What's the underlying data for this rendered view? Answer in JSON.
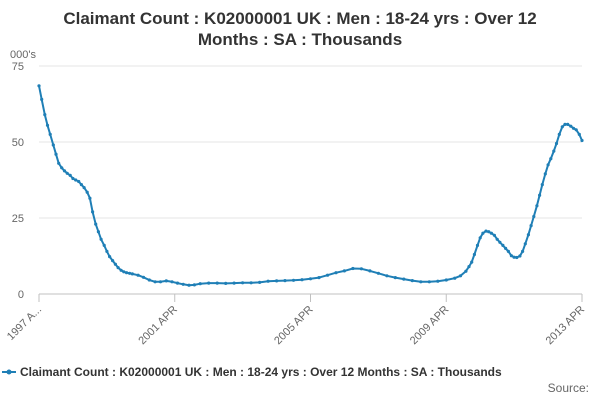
{
  "chart_data": {
    "type": "line",
    "title_lines": [
      "Claimant Count : K02000001 UK : Men : 18-24 yrs : Over 12",
      "Months : SA : Thousands"
    ],
    "ylabel": "000's",
    "ylim": [
      0,
      75
    ],
    "y_ticks": [
      "0",
      "25",
      "50",
      "75"
    ],
    "x_tick_labels": [
      "1997 A...",
      "2001 APR",
      "2005 APR",
      "2009 APR",
      "2013 APR"
    ],
    "x_range": [
      1997.25,
      2013.25
    ],
    "grid": "horizontal",
    "legend_position": "bottom",
    "series": [
      {
        "name": "Claimant Count : K02000001 UK : Men : 18-24 yrs : Over 12 Months : SA : Thousands",
        "color": "#1f7fb6",
        "points": [
          [
            1997.25,
            68.5
          ],
          [
            1997.33,
            64
          ],
          [
            1997.42,
            59
          ],
          [
            1997.5,
            55.5
          ],
          [
            1997.58,
            52.5
          ],
          [
            1997.67,
            49
          ],
          [
            1997.75,
            46
          ],
          [
            1997.83,
            43
          ],
          [
            1997.92,
            41.5
          ],
          [
            1998.0,
            40.5
          ],
          [
            1998.08,
            39.7
          ],
          [
            1998.17,
            39
          ],
          [
            1998.25,
            38
          ],
          [
            1998.33,
            37.5
          ],
          [
            1998.42,
            37
          ],
          [
            1998.5,
            36
          ],
          [
            1998.58,
            35
          ],
          [
            1998.67,
            33.5
          ],
          [
            1998.75,
            31.5
          ],
          [
            1998.83,
            27
          ],
          [
            1998.92,
            23
          ],
          [
            1999.0,
            20.5
          ],
          [
            1999.08,
            18
          ],
          [
            1999.17,
            16
          ],
          [
            1999.25,
            14
          ],
          [
            1999.33,
            12.3
          ],
          [
            1999.42,
            11
          ],
          [
            1999.5,
            9.8
          ],
          [
            1999.58,
            8.7
          ],
          [
            1999.67,
            7.8
          ],
          [
            1999.75,
            7.3
          ],
          [
            1999.83,
            7.0
          ],
          [
            1999.92,
            6.8
          ],
          [
            2000.0,
            6.6
          ],
          [
            2000.17,
            6.2
          ],
          [
            2000.33,
            5.5
          ],
          [
            2000.5,
            4.6
          ],
          [
            2000.67,
            4.0
          ],
          [
            2000.83,
            4.0
          ],
          [
            2001.0,
            4.3
          ],
          [
            2001.17,
            4.0
          ],
          [
            2001.33,
            3.6
          ],
          [
            2001.5,
            3.2
          ],
          [
            2001.67,
            2.9
          ],
          [
            2001.83,
            3.0
          ],
          [
            2002.0,
            3.4
          ],
          [
            2002.25,
            3.6
          ],
          [
            2002.5,
            3.6
          ],
          [
            2002.75,
            3.5
          ],
          [
            2003.0,
            3.6
          ],
          [
            2003.25,
            3.7
          ],
          [
            2003.5,
            3.7
          ],
          [
            2003.75,
            3.8
          ],
          [
            2004.0,
            4.2
          ],
          [
            2004.25,
            4.3
          ],
          [
            2004.5,
            4.4
          ],
          [
            2004.75,
            4.5
          ],
          [
            2005.0,
            4.7
          ],
          [
            2005.25,
            5.0
          ],
          [
            2005.5,
            5.4
          ],
          [
            2005.75,
            6.2
          ],
          [
            2006.0,
            7.0
          ],
          [
            2006.25,
            7.6
          ],
          [
            2006.5,
            8.4
          ],
          [
            2006.75,
            8.3
          ],
          [
            2007.0,
            7.6
          ],
          [
            2007.25,
            6.8
          ],
          [
            2007.5,
            6.0
          ],
          [
            2007.75,
            5.4
          ],
          [
            2008.0,
            4.9
          ],
          [
            2008.25,
            4.4
          ],
          [
            2008.5,
            4.0
          ],
          [
            2008.75,
            4.0
          ],
          [
            2009.0,
            4.2
          ],
          [
            2009.25,
            4.6
          ],
          [
            2009.5,
            5.2
          ],
          [
            2009.67,
            6.0
          ],
          [
            2009.83,
            7.5
          ],
          [
            2009.92,
            9.0
          ],
          [
            2010.0,
            10.5
          ],
          [
            2010.08,
            13
          ],
          [
            2010.17,
            16
          ],
          [
            2010.25,
            18.5
          ],
          [
            2010.33,
            20
          ],
          [
            2010.42,
            20.7
          ],
          [
            2010.5,
            20.5
          ],
          [
            2010.58,
            20
          ],
          [
            2010.67,
            19.3
          ],
          [
            2010.75,
            18
          ],
          [
            2010.83,
            17
          ],
          [
            2010.92,
            16
          ],
          [
            2011.0,
            15
          ],
          [
            2011.08,
            14
          ],
          [
            2011.17,
            12.6
          ],
          [
            2011.25,
            12.1
          ],
          [
            2011.33,
            12.0
          ],
          [
            2011.42,
            12.5
          ],
          [
            2011.5,
            14
          ],
          [
            2011.58,
            16.5
          ],
          [
            2011.67,
            19.5
          ],
          [
            2011.75,
            22.5
          ],
          [
            2011.83,
            25.5
          ],
          [
            2011.92,
            29
          ],
          [
            2012.0,
            32.5
          ],
          [
            2012.08,
            36
          ],
          [
            2012.17,
            39.5
          ],
          [
            2012.25,
            42.5
          ],
          [
            2012.33,
            44.5
          ],
          [
            2012.42,
            47
          ],
          [
            2012.5,
            49.5
          ],
          [
            2012.58,
            52.5
          ],
          [
            2012.67,
            55
          ],
          [
            2012.75,
            55.8
          ],
          [
            2012.83,
            55.8
          ],
          [
            2012.92,
            55.2
          ],
          [
            2013.0,
            54.5
          ],
          [
            2013.08,
            54
          ],
          [
            2013.17,
            52.5
          ],
          [
            2013.25,
            50.5
          ]
        ]
      }
    ],
    "source_label": "Source:"
  }
}
